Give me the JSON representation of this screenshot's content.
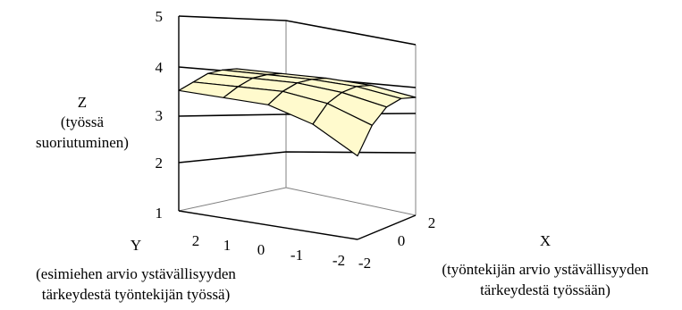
{
  "chart_data": {
    "type": "surface",
    "zlabel": [
      "Z",
      "(työssä",
      "suoriutuminen)"
    ],
    "ylabel": [
      "Y",
      "(esimiehen arvio ystävällisyyden",
      "tärkeydestä työntekijän työssä)"
    ],
    "xlabel": [
      "X",
      "(työntekijän arvio ystävällisyyden",
      "tärkeydestä työssään)"
    ],
    "z_ticks": [
      "5",
      "4",
      "3",
      "2",
      "1"
    ],
    "zlim": [
      1,
      5
    ],
    "y_ticks": [
      "2",
      "1",
      "0",
      "-1",
      "-2"
    ],
    "x_ticks": [
      "-2",
      "0",
      "2"
    ],
    "x": [
      -2,
      -1,
      0,
      1,
      2
    ],
    "y": [
      -2,
      -1,
      0,
      1,
      2
    ],
    "z": [
      [
        2.7,
        3.2,
        3.45,
        3.45,
        3.45
      ],
      [
        3.2,
        3.5,
        3.6,
        3.55,
        3.5
      ],
      [
        3.45,
        3.6,
        3.65,
        3.6,
        3.55
      ],
      [
        3.5,
        3.6,
        3.6,
        3.55,
        3.5
      ],
      [
        3.4,
        3.5,
        3.5,
        3.45,
        3.4
      ]
    ],
    "grid": true,
    "colors": {
      "surface_top": "#fffacd",
      "surface_under": "#a0306a",
      "lines": "#000000",
      "walls": "#808080"
    }
  }
}
